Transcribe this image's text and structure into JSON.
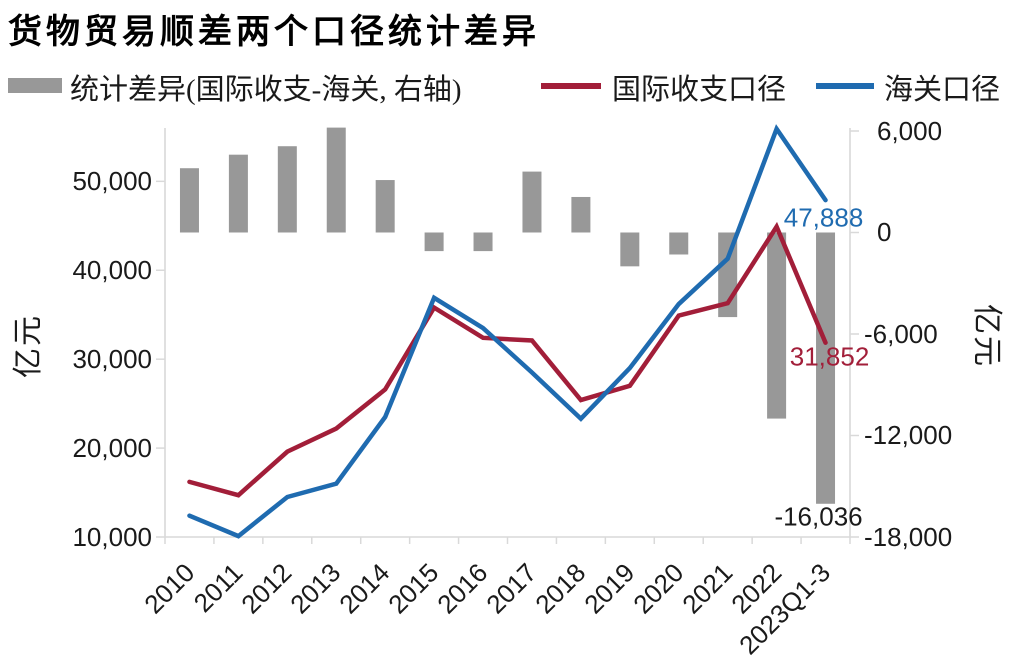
{
  "title": "货物贸易顺差两个口径统计差异",
  "legend": [
    {
      "label": "统计差异(国际收支-海关, 右轴)",
      "type": "bar",
      "color": "#989898"
    },
    {
      "label": "国际收支口径",
      "type": "line",
      "color": "#A21E39"
    },
    {
      "label": "海关口径",
      "type": "line",
      "color": "#1F6BB0"
    }
  ],
  "chart_data": {
    "type": "combo",
    "title": "货物贸易顺差两个口径统计差异",
    "categories": [
      "2010",
      "2011",
      "2012",
      "2013",
      "2014",
      "2015",
      "2016",
      "2017",
      "2018",
      "2019",
      "2020",
      "2021",
      "2022",
      "2023Q1-3"
    ],
    "series": [
      {
        "name": "统计差异(国际收支-海关, 右轴)",
        "type": "bar",
        "axis": "right",
        "color": "#989898",
        "values": [
          3800,
          4600,
          5100,
          6200,
          3100,
          -1100,
          -1100,
          3600,
          2100,
          -2000,
          -1300,
          -5000,
          -11000,
          -16036
        ]
      },
      {
        "name": "国际收支口径",
        "type": "line",
        "axis": "left",
        "color": "#A21E39",
        "values": [
          16200,
          14700,
          19600,
          22200,
          26600,
          35800,
          32400,
          32100,
          25400,
          27000,
          34900,
          36300,
          44900,
          31852
        ]
      },
      {
        "name": "海关口径",
        "type": "line",
        "axis": "left",
        "color": "#1F6BB0",
        "values": [
          12400,
          10100,
          14500,
          16000,
          23500,
          36900,
          33500,
          28500,
          23300,
          29000,
          36200,
          41300,
          55900,
          47888
        ]
      }
    ],
    "left_axis": {
      "title": "亿元",
      "ticks": [
        "50,000",
        "40,000",
        "30,000",
        "20,000",
        "10,000"
      ],
      "tick_values": [
        50000,
        40000,
        30000,
        20000,
        10000
      ],
      "ylim": [
        10000,
        56000
      ]
    },
    "right_axis": {
      "title": "亿元",
      "ticks": [
        "6,000",
        "0",
        "-6,000",
        "-12,000",
        "-18,000"
      ],
      "tick_values": [
        6000,
        0,
        -6000,
        -12000,
        -18000
      ],
      "ylim": [
        -18000,
        6177
      ]
    },
    "annotations": [
      {
        "text": "47,888",
        "value": 47888,
        "axis": "left",
        "series": "海关口径",
        "color": "#1F6BB0"
      },
      {
        "text": "31,852",
        "value": 31852,
        "axis": "left",
        "series": "国际收支口径",
        "color": "#A21E39"
      },
      {
        "text": "-16,036",
        "value": -16036,
        "axis": "right",
        "series": "统计差异(国际收支-海关, 右轴)",
        "color": "#1a1a1a"
      }
    ],
    "grid": false,
    "legend_position": "top"
  }
}
